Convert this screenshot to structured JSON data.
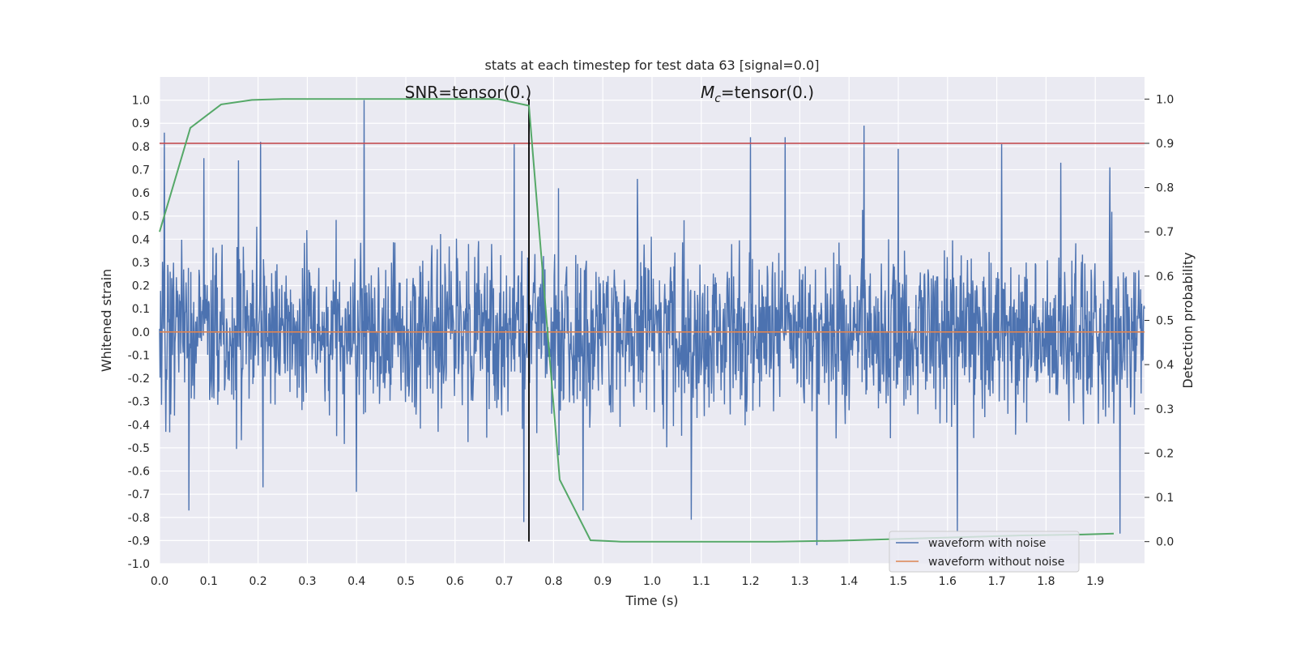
{
  "chart_data": {
    "type": "line",
    "title": "stats at each timestep for test data 63 [signal=0.0]",
    "xlabel": "Time (s)",
    "ylabel_left": "Whitened strain",
    "ylabel_right": "Detection probability",
    "xlim": [
      0,
      2.0
    ],
    "ylim_left": [
      -1.0,
      1.1
    ],
    "ylim_right": [
      -0.05,
      1.05
    ],
    "x_ticks": [
      "0.0",
      "0.1",
      "0.2",
      "0.3",
      "0.4",
      "0.5",
      "0.6",
      "0.7",
      "0.8",
      "0.9",
      "1.0",
      "1.1",
      "1.2",
      "1.3",
      "1.4",
      "1.5",
      "1.6",
      "1.7",
      "1.8",
      "1.9"
    ],
    "y_ticks_left": [
      "-1.0",
      "-0.9",
      "-0.8",
      "-0.7",
      "-0.6",
      "-0.5",
      "-0.4",
      "-0.3",
      "-0.2",
      "-0.1",
      "0.0",
      "0.1",
      "0.2",
      "0.3",
      "0.4",
      "0.5",
      "0.6",
      "0.7",
      "0.8",
      "0.9",
      "1.0"
    ],
    "y_ticks_right": [
      "0.0",
      "0.1",
      "0.2",
      "0.3",
      "0.4",
      "0.5",
      "0.6",
      "0.7",
      "0.8",
      "0.9",
      "1.0"
    ],
    "grid": true,
    "annotations": {
      "snr": "SNR=tensor(0.)",
      "mc_symbol": "M",
      "mc_sub": "c",
      "mc_rest": "=tensor(0.)"
    },
    "legend": {
      "placement": "lower-right",
      "entries": [
        {
          "label": "waveform with noise",
          "color": "#4c72b0"
        },
        {
          "label": "waveform without noise",
          "color": "#dd8452"
        }
      ]
    },
    "noise_trace": {
      "name": "waveform with noise",
      "color": "#4c72b0",
      "samples": 2048,
      "duration": 2.0,
      "spikes": [
        {
          "x": 0.01,
          "y": 0.86
        },
        {
          "x": 0.06,
          "y": -0.77
        },
        {
          "x": 0.09,
          "y": 0.75
        },
        {
          "x": 0.16,
          "y": 0.74
        },
        {
          "x": 0.205,
          "y": 0.82
        },
        {
          "x": 0.21,
          "y": -0.67
        },
        {
          "x": 0.415,
          "y": 1.0
        },
        {
          "x": 0.4,
          "y": -0.69
        },
        {
          "x": 0.72,
          "y": 0.81
        },
        {
          "x": 0.74,
          "y": -0.82
        },
        {
          "x": 0.81,
          "y": 0.62
        },
        {
          "x": 0.86,
          "y": -0.77
        },
        {
          "x": 0.97,
          "y": 0.66
        },
        {
          "x": 1.08,
          "y": -0.81
        },
        {
          "x": 1.2,
          "y": 0.84
        },
        {
          "x": 1.27,
          "y": 0.84
        },
        {
          "x": 1.335,
          "y": -0.92
        },
        {
          "x": 1.43,
          "y": 0.89
        },
        {
          "x": 1.5,
          "y": 0.79
        },
        {
          "x": 1.62,
          "y": -0.86
        },
        {
          "x": 1.71,
          "y": 0.81
        },
        {
          "x": 1.83,
          "y": 0.73
        },
        {
          "x": 1.95,
          "y": -0.87
        },
        {
          "x": 1.93,
          "y": 0.71
        }
      ]
    },
    "clean_trace": {
      "name": "waveform without noise",
      "color": "#dd8452",
      "x": [
        0,
        2.0
      ],
      "y": [
        0.0,
        0.0
      ]
    },
    "detection_probability": {
      "color": "#55a868",
      "x": [
        0.0,
        0.0625,
        0.125,
        0.1875,
        0.25,
        0.3125,
        0.375,
        0.4375,
        0.5,
        0.5625,
        0.625,
        0.6875,
        0.75,
        0.8125,
        0.875,
        0.9375,
        1.0,
        1.0625,
        1.125,
        1.1875,
        1.25,
        1.3125,
        1.375,
        1.4375,
        1.5,
        1.5625,
        1.625,
        1.6875,
        1.75,
        1.8125,
        1.875,
        1.9375
      ],
      "y": [
        0.7,
        0.935,
        0.988,
        0.998,
        1.0,
        1.0,
        1.0,
        1.0,
        1.0,
        1.0,
        1.0,
        1.0,
        0.985,
        0.14,
        0.003,
        0.0,
        0.0,
        0.0,
        0.0,
        0.0,
        0.0,
        0.001,
        0.002,
        0.004,
        0.006,
        0.008,
        0.01,
        0.012,
        0.014,
        0.015,
        0.016,
        0.018
      ]
    },
    "threshold_line": {
      "color": "#c44e52",
      "y_right": 0.9
    },
    "marker_line": {
      "color": "#000000",
      "x": 0.75,
      "y_right_range": [
        0.0,
        1.0
      ]
    }
  }
}
